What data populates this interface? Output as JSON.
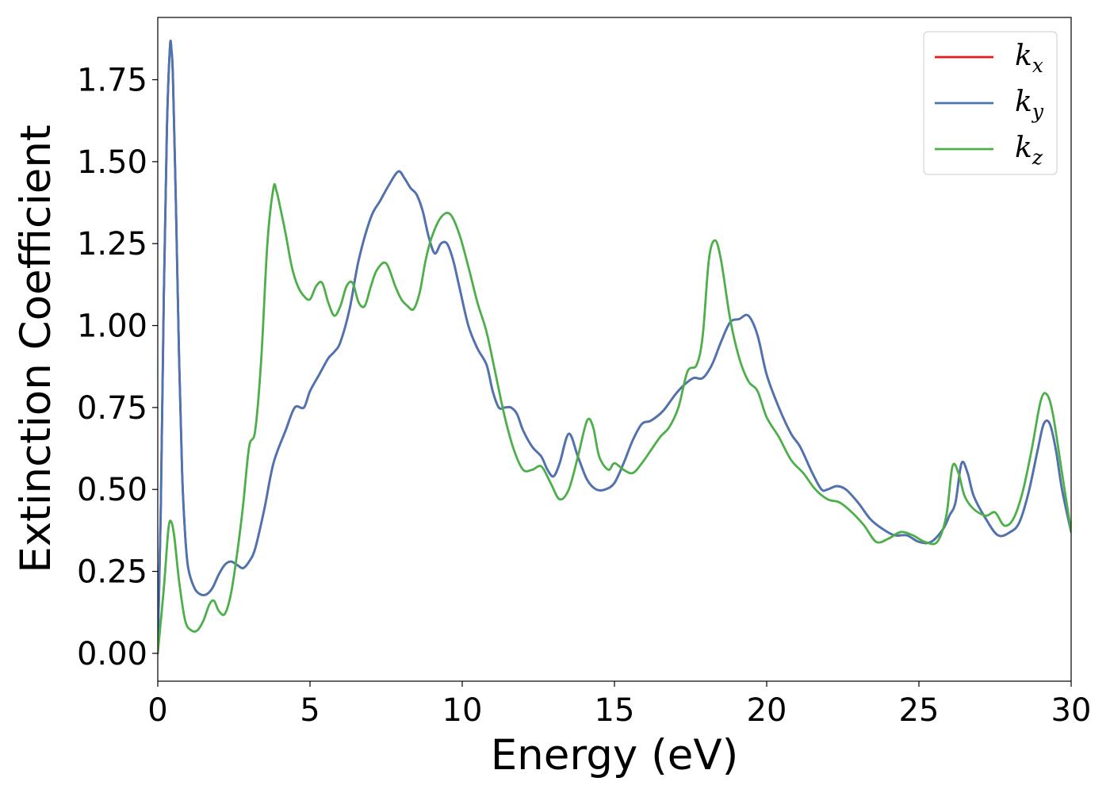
{
  "chart_data": {
    "type": "line",
    "title": "",
    "xlabel": "Energy (eV)",
    "ylabel": "Extinction Coefficient",
    "xlim": [
      0,
      30
    ],
    "ylim": [
      -0.085,
      1.94
    ],
    "xticks": [
      0,
      5,
      10,
      15,
      20,
      25,
      30
    ],
    "xtick_labels": [
      "0",
      "5",
      "10",
      "15",
      "20",
      "25",
      "30"
    ],
    "yticks": [
      0,
      0.25,
      0.5,
      0.75,
      1.0,
      1.25,
      1.5,
      1.75
    ],
    "ytick_labels": [
      "0.00",
      "0.25",
      "0.50",
      "0.75",
      "1.00",
      "1.25",
      "1.50",
      "1.75"
    ],
    "grid": false,
    "legend": {
      "position": "top-right",
      "entries": [
        {
          "base": "k",
          "sub": "x",
          "color": "#e41a1c"
        },
        {
          "base": "k",
          "sub": "y",
          "color": "#4a75b4"
        },
        {
          "base": "k",
          "sub": "z",
          "color": "#4daf4a"
        }
      ]
    },
    "series": [
      {
        "name": "k_x",
        "color": "#e41a1c",
        "x": [
          0,
          0.1,
          0.2,
          0.3,
          0.4,
          0.45,
          0.5,
          0.6,
          0.7,
          0.8,
          0.9,
          1.0,
          1.2,
          1.4,
          1.6,
          1.8,
          2.0,
          2.2,
          2.4,
          2.6,
          2.8,
          3.0,
          3.2,
          3.5,
          3.8,
          4.2,
          4.5,
          4.8,
          5.0,
          5.3,
          5.6,
          5.8,
          6.0,
          6.3,
          6.6,
          7.0,
          7.3,
          7.6,
          7.9,
          8.1,
          8.3,
          8.5,
          8.7,
          8.9,
          9.1,
          9.3,
          9.5,
          9.7,
          9.9,
          10.2,
          10.5,
          10.8,
          11.0,
          11.2,
          11.4,
          11.6,
          11.8,
          12.0,
          12.3,
          12.6,
          12.8,
          13.0,
          13.2,
          13.5,
          13.8,
          14.1,
          14.4,
          14.7,
          15.0,
          15.3,
          15.6,
          15.9,
          16.2,
          16.6,
          17.0,
          17.3,
          17.6,
          17.9,
          18.2,
          18.5,
          18.8,
          19.1,
          19.4,
          19.7,
          20.0,
          20.4,
          20.8,
          21.1,
          21.5,
          21.8,
          22.0,
          22.3,
          22.6,
          23.0,
          23.4,
          23.8,
          24.2,
          24.6,
          25.0,
          25.4,
          25.8,
          26.0,
          26.2,
          26.4,
          26.6,
          26.8,
          27.2,
          27.6,
          28.0,
          28.3,
          28.6,
          28.9,
          29.1,
          29.3,
          29.5,
          29.7,
          30.0
        ],
        "y": [
          0.0,
          0.45,
          1.1,
          1.6,
          1.85,
          1.84,
          1.75,
          1.35,
          0.9,
          0.55,
          0.36,
          0.26,
          0.2,
          0.18,
          0.18,
          0.2,
          0.24,
          0.27,
          0.28,
          0.27,
          0.26,
          0.28,
          0.32,
          0.44,
          0.58,
          0.68,
          0.75,
          0.75,
          0.8,
          0.85,
          0.9,
          0.92,
          0.95,
          1.05,
          1.2,
          1.33,
          1.38,
          1.43,
          1.47,
          1.45,
          1.42,
          1.4,
          1.35,
          1.27,
          1.22,
          1.25,
          1.25,
          1.2,
          1.12,
          1.0,
          0.93,
          0.88,
          0.8,
          0.75,
          0.75,
          0.75,
          0.73,
          0.68,
          0.63,
          0.6,
          0.56,
          0.54,
          0.58,
          0.67,
          0.6,
          0.53,
          0.5,
          0.5,
          0.52,
          0.58,
          0.65,
          0.7,
          0.71,
          0.74,
          0.79,
          0.82,
          0.84,
          0.84,
          0.88,
          0.95,
          1.01,
          1.02,
          1.03,
          0.97,
          0.85,
          0.75,
          0.67,
          0.63,
          0.55,
          0.5,
          0.5,
          0.51,
          0.5,
          0.46,
          0.41,
          0.38,
          0.36,
          0.36,
          0.34,
          0.34,
          0.38,
          0.42,
          0.46,
          0.58,
          0.55,
          0.48,
          0.41,
          0.36,
          0.37,
          0.4,
          0.49,
          0.62,
          0.7,
          0.7,
          0.62,
          0.5,
          0.37
        ]
      },
      {
        "name": "k_y",
        "color": "#4a75b4",
        "x": [
          0,
          0.1,
          0.2,
          0.3,
          0.4,
          0.45,
          0.5,
          0.6,
          0.7,
          0.8,
          0.9,
          1.0,
          1.2,
          1.4,
          1.6,
          1.8,
          2.0,
          2.2,
          2.4,
          2.6,
          2.8,
          3.0,
          3.2,
          3.5,
          3.8,
          4.2,
          4.5,
          4.8,
          5.0,
          5.3,
          5.6,
          5.8,
          6.0,
          6.3,
          6.6,
          7.0,
          7.3,
          7.6,
          7.9,
          8.1,
          8.3,
          8.5,
          8.7,
          8.9,
          9.1,
          9.3,
          9.5,
          9.7,
          9.9,
          10.2,
          10.5,
          10.8,
          11.0,
          11.2,
          11.4,
          11.6,
          11.8,
          12.0,
          12.3,
          12.6,
          12.8,
          13.0,
          13.2,
          13.5,
          13.8,
          14.1,
          14.4,
          14.7,
          15.0,
          15.3,
          15.6,
          15.9,
          16.2,
          16.6,
          17.0,
          17.3,
          17.6,
          17.9,
          18.2,
          18.5,
          18.8,
          19.1,
          19.4,
          19.7,
          20.0,
          20.4,
          20.8,
          21.1,
          21.5,
          21.8,
          22.0,
          22.3,
          22.6,
          23.0,
          23.4,
          23.8,
          24.2,
          24.6,
          25.0,
          25.4,
          25.8,
          26.0,
          26.2,
          26.4,
          26.6,
          26.8,
          27.2,
          27.6,
          28.0,
          28.3,
          28.6,
          28.9,
          29.1,
          29.3,
          29.5,
          29.7,
          30.0
        ],
        "y": [
          0.0,
          0.45,
          1.1,
          1.6,
          1.85,
          1.84,
          1.75,
          1.35,
          0.9,
          0.55,
          0.36,
          0.26,
          0.2,
          0.18,
          0.18,
          0.2,
          0.24,
          0.27,
          0.28,
          0.27,
          0.26,
          0.28,
          0.32,
          0.44,
          0.58,
          0.68,
          0.75,
          0.75,
          0.8,
          0.85,
          0.9,
          0.92,
          0.95,
          1.05,
          1.2,
          1.33,
          1.38,
          1.43,
          1.47,
          1.45,
          1.42,
          1.4,
          1.35,
          1.27,
          1.22,
          1.25,
          1.25,
          1.2,
          1.12,
          1.0,
          0.93,
          0.88,
          0.8,
          0.75,
          0.75,
          0.75,
          0.73,
          0.68,
          0.63,
          0.6,
          0.56,
          0.54,
          0.58,
          0.67,
          0.6,
          0.53,
          0.5,
          0.5,
          0.52,
          0.58,
          0.65,
          0.7,
          0.71,
          0.74,
          0.79,
          0.82,
          0.84,
          0.84,
          0.88,
          0.95,
          1.01,
          1.02,
          1.03,
          0.97,
          0.85,
          0.75,
          0.67,
          0.63,
          0.55,
          0.5,
          0.5,
          0.51,
          0.5,
          0.46,
          0.41,
          0.38,
          0.36,
          0.36,
          0.34,
          0.34,
          0.38,
          0.42,
          0.46,
          0.58,
          0.55,
          0.48,
          0.41,
          0.36,
          0.37,
          0.4,
          0.49,
          0.62,
          0.7,
          0.7,
          0.62,
          0.5,
          0.37
        ]
      },
      {
        "name": "k_z",
        "color": "#4daf4a",
        "x": [
          0,
          0.2,
          0.35,
          0.45,
          0.55,
          0.7,
          0.9,
          1.1,
          1.3,
          1.5,
          1.7,
          1.85,
          2.0,
          2.2,
          2.4,
          2.6,
          2.8,
          3.0,
          3.2,
          3.4,
          3.6,
          3.8,
          3.9,
          4.0,
          4.2,
          4.4,
          4.6,
          4.8,
          5.0,
          5.2,
          5.4,
          5.6,
          5.8,
          6.0,
          6.2,
          6.4,
          6.6,
          6.8,
          7.0,
          7.2,
          7.5,
          7.8,
          8.0,
          8.2,
          8.4,
          8.6,
          8.8,
          9.0,
          9.3,
          9.6,
          9.9,
          10.2,
          10.5,
          10.8,
          11.1,
          11.4,
          11.7,
          12.0,
          12.3,
          12.6,
          12.9,
          13.2,
          13.5,
          13.8,
          14.1,
          14.3,
          14.5,
          14.8,
          15.0,
          15.3,
          15.6,
          15.9,
          16.2,
          16.5,
          16.8,
          17.1,
          17.4,
          17.7,
          17.9,
          18.1,
          18.3,
          18.5,
          18.8,
          19.1,
          19.4,
          19.7,
          20.0,
          20.4,
          20.8,
          21.2,
          21.6,
          22.0,
          22.4,
          22.8,
          23.2,
          23.6,
          24.0,
          24.4,
          24.8,
          25.2,
          25.6,
          25.9,
          26.1,
          26.3,
          26.5,
          26.8,
          27.2,
          27.5,
          27.8,
          28.1,
          28.4,
          28.7,
          29.0,
          29.2,
          29.4,
          29.7,
          30.0
        ],
        "y": [
          0.0,
          0.2,
          0.38,
          0.4,
          0.35,
          0.22,
          0.1,
          0.07,
          0.07,
          0.1,
          0.15,
          0.16,
          0.13,
          0.12,
          0.18,
          0.3,
          0.45,
          0.63,
          0.68,
          0.9,
          1.25,
          1.42,
          1.41,
          1.37,
          1.28,
          1.18,
          1.12,
          1.09,
          1.08,
          1.12,
          1.13,
          1.07,
          1.03,
          1.06,
          1.12,
          1.13,
          1.07,
          1.06,
          1.12,
          1.17,
          1.19,
          1.12,
          1.08,
          1.06,
          1.05,
          1.1,
          1.2,
          1.27,
          1.33,
          1.34,
          1.28,
          1.18,
          1.07,
          0.98,
          0.85,
          0.72,
          0.62,
          0.56,
          0.56,
          0.57,
          0.52,
          0.47,
          0.5,
          0.6,
          0.71,
          0.69,
          0.6,
          0.56,
          0.58,
          0.56,
          0.55,
          0.58,
          0.62,
          0.66,
          0.69,
          0.75,
          0.86,
          0.88,
          0.97,
          1.2,
          1.26,
          1.2,
          1.02,
          0.9,
          0.83,
          0.8,
          0.72,
          0.66,
          0.59,
          0.55,
          0.5,
          0.47,
          0.46,
          0.43,
          0.39,
          0.34,
          0.35,
          0.37,
          0.36,
          0.34,
          0.34,
          0.42,
          0.57,
          0.55,
          0.48,
          0.44,
          0.42,
          0.43,
          0.39,
          0.41,
          0.49,
          0.62,
          0.77,
          0.79,
          0.73,
          0.55,
          0.37
        ]
      }
    ]
  }
}
